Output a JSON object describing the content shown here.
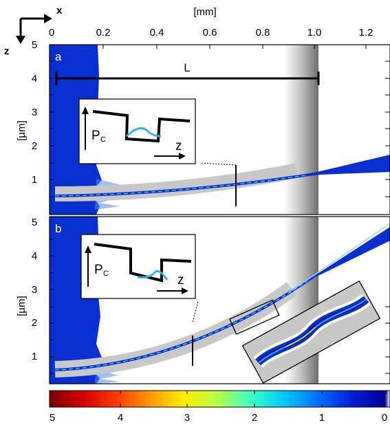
{
  "figure": {
    "orientation": {
      "x_label": "x",
      "z_label": "z"
    },
    "top_axis": {
      "unit_label": "[mm]",
      "ticks": [
        "0",
        "0.2",
        "0.4",
        "0.6",
        "0.8",
        "1.0",
        "1.2"
      ]
    },
    "panel_a": {
      "letter": "a",
      "y_label": "[µm]",
      "y_ticks": [
        "1",
        "2",
        "3",
        "4",
        "5"
      ],
      "length_label": "L",
      "inset_label_main": "P",
      "inset_label_sub": "C",
      "inset_axis_label": "z"
    },
    "panel_b": {
      "letter": "b",
      "y_label": "[µm]",
      "y_ticks": [
        "1",
        "2",
        "3",
        "4",
        "5"
      ],
      "inset_label_main": "P",
      "inset_label_sub": "C",
      "inset_axis_label": "z"
    },
    "colorbar": {
      "ticks": [
        "5",
        "4",
        "3",
        "2",
        "1",
        "0"
      ],
      "stops": [
        "#7f0000",
        "#d40000",
        "#ff3a00",
        "#ff9a00",
        "#ffee00",
        "#b8ff4a",
        "#3cffc2",
        "#00c8ff",
        "#0070ff",
        "#0020d8",
        "#00008f",
        "#ffffff"
      ]
    },
    "colors": {
      "waveguide_gray": "#c8c8c8",
      "field_blue": "#0a2fd0",
      "light_blue": "#2ab5e8",
      "dark_blue": "#00139c",
      "frame": "#000000"
    }
  }
}
